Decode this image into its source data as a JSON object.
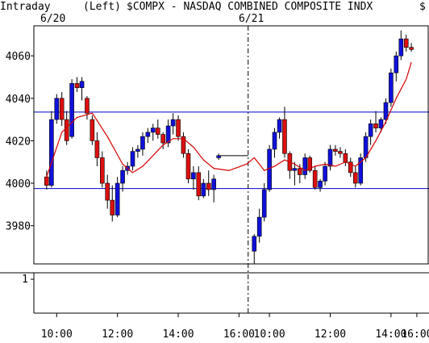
{
  "header": {
    "mode": "Intraday",
    "scale_side": "(Left)",
    "symbol_title": "$COMPX - NASDAQ COMBINED COMPOSITE INDX",
    "overflow_text": "$",
    "day1_label": "6/20",
    "day2_label": "6/21"
  },
  "chart_data": {
    "type": "candlestick",
    "title": "$COMPX - NASDAQ COMBINED COMPOSITE INDX",
    "sessions": [
      "6/20",
      "6/21"
    ],
    "ylim": [
      3962,
      4073
    ],
    "y_ticks": [
      3980,
      4000,
      4020,
      4040,
      4060
    ],
    "x_ticks": [
      "10:00",
      "12:00",
      "14:00",
      "16:00",
      "10:00",
      "12:00",
      "14:00",
      "16:00"
    ],
    "horizontal_lines": [
      4033.5,
      3997.5
    ],
    "lower_panel": {
      "y_tick": "1"
    },
    "series": [
      {
        "name": "price",
        "candles": [
          [
            9.67,
            4003,
            4006,
            3997,
            3999
          ],
          [
            9.83,
            3999,
            4034,
            3998,
            4030
          ],
          [
            10.0,
            4030,
            4042,
            4028,
            4040
          ],
          [
            10.17,
            4040,
            4043,
            4027,
            4030
          ],
          [
            10.33,
            4030,
            4034,
            4018,
            4020
          ],
          [
            10.5,
            4022,
            4049,
            4021,
            4047
          ],
          [
            10.67,
            4047,
            4050,
            4043,
            4045
          ],
          [
            10.83,
            4045,
            4050,
            4039,
            4048
          ],
          [
            11.0,
            4040,
            4041,
            4030,
            4033
          ],
          [
            11.17,
            4030,
            4032,
            4018,
            4020
          ],
          [
            11.33,
            4020,
            4024,
            4008,
            4012
          ],
          [
            11.5,
            4012,
            4015,
            3998,
            4000
          ],
          [
            11.67,
            4000,
            4004,
            3988,
            3992
          ],
          [
            11.83,
            3992,
            3999,
            3982,
            3985
          ],
          [
            12.0,
            3985,
            4003,
            3984,
            4000
          ],
          [
            12.17,
            4000,
            4008,
            3996,
            4006
          ],
          [
            12.33,
            4006,
            4010,
            4004,
            4008
          ],
          [
            12.5,
            4008,
            4017,
            4006,
            4015
          ],
          [
            12.67,
            4015,
            4018,
            4012,
            4016
          ],
          [
            12.83,
            4016,
            4024,
            4013,
            4022
          ],
          [
            13.0,
            4022,
            4026,
            4019,
            4024
          ],
          [
            13.17,
            4024,
            4028,
            4020,
            4026
          ],
          [
            13.33,
            4026,
            4030,
            4021,
            4023
          ],
          [
            13.5,
            4023,
            4024,
            4016,
            4019
          ],
          [
            13.67,
            4019,
            4030,
            4017,
            4027
          ],
          [
            13.83,
            4027,
            4033,
            4023,
            4030
          ],
          [
            14.0,
            4030,
            4032,
            4020,
            4022
          ],
          [
            14.17,
            4022,
            4024,
            4012,
            4014
          ],
          [
            14.33,
            4014,
            4016,
            4000,
            4002
          ],
          [
            14.5,
            4002,
            4008,
            3997,
            4005
          ],
          [
            14.67,
            4005,
            4008,
            3992,
            3994
          ],
          [
            14.83,
            3994,
            4002,
            3993,
            4000
          ],
          [
            15.0,
            4000,
            4006,
            3994,
            3997
          ],
          [
            15.17,
            3997,
            4004,
            3991,
            4002
          ],
          [
            15.33,
            4012,
            4014,
            4011,
            4013
          ],
          [
            16.5,
            3968,
            3976,
            3962,
            3975
          ],
          [
            16.67,
            3975,
            3988,
            3972,
            3984
          ],
          [
            16.83,
            3984,
            4000,
            3982,
            3997
          ],
          [
            17.0,
            3997,
            4018,
            3996,
            4016
          ],
          [
            17.17,
            4016,
            4026,
            4012,
            4024
          ],
          [
            17.33,
            4024,
            4031,
            4021,
            4030
          ],
          [
            17.5,
            4030,
            4036,
            4012,
            4014
          ],
          [
            17.67,
            4014,
            4015,
            4002,
            4006
          ],
          [
            17.83,
            4006,
            4010,
            3999,
            4007
          ],
          [
            18.0,
            4007,
            4009,
            4000,
            4004
          ],
          [
            18.17,
            4004,
            4014,
            4002,
            4012
          ],
          [
            18.33,
            4012,
            4013,
            4005,
            4006
          ],
          [
            18.5,
            4006,
            4008,
            3997,
            3998
          ],
          [
            18.67,
            3998,
            4002,
            3996,
            4001
          ],
          [
            18.83,
            4001,
            4010,
            3999,
            4008
          ],
          [
            19.0,
            4008,
            4018,
            4006,
            4016
          ],
          [
            19.17,
            4016,
            4018,
            4013,
            4015
          ],
          [
            19.33,
            4015,
            4017,
            4012,
            4014
          ],
          [
            19.5,
            4014,
            4016,
            4008,
            4010
          ],
          [
            19.67,
            4010,
            4012,
            4003,
            4005
          ],
          [
            19.83,
            4005,
            4008,
            3998,
            4000
          ],
          [
            20.0,
            4000,
            4014,
            3999,
            4012
          ],
          [
            20.17,
            4012,
            4024,
            4010,
            4022
          ],
          [
            20.33,
            4022,
            4030,
            4018,
            4028
          ],
          [
            20.5,
            4028,
            4034,
            4024,
            4026
          ],
          [
            20.67,
            4026,
            4031,
            4024,
            4030
          ],
          [
            20.83,
            4030,
            4040,
            4028,
            4038
          ],
          [
            21.0,
            4038,
            4054,
            4036,
            4052
          ],
          [
            21.17,
            4052,
            4062,
            4048,
            4060
          ],
          [
            21.33,
            4060,
            4072,
            4058,
            4068
          ],
          [
            21.5,
            4068,
            4070,
            4062,
            4064
          ],
          [
            21.67,
            4064,
            4066,
            4062,
            4063
          ]
        ]
      },
      {
        "name": "moving average",
        "color": "#d40000",
        "points": [
          [
            9.67,
            4003
          ],
          [
            10.17,
            4024
          ],
          [
            10.67,
            4031
          ],
          [
            11.17,
            4033
          ],
          [
            11.67,
            4022
          ],
          [
            12.17,
            4009
          ],
          [
            12.5,
            4005
          ],
          [
            12.83,
            4008
          ],
          [
            13.17,
            4013
          ],
          [
            13.5,
            4018
          ],
          [
            13.83,
            4021
          ],
          [
            14.17,
            4021
          ],
          [
            14.5,
            4017
          ],
          [
            14.83,
            4011
          ],
          [
            15.17,
            4007
          ],
          [
            15.67,
            4006
          ],
          [
            16.25,
            4009
          ],
          [
            16.5,
            4012
          ],
          [
            16.67,
            4009
          ],
          [
            16.83,
            4006
          ],
          [
            17.17,
            4008
          ],
          [
            17.5,
            4011
          ],
          [
            17.83,
            4009
          ],
          [
            18.17,
            4006
          ],
          [
            18.5,
            4008
          ],
          [
            18.83,
            4009
          ],
          [
            19.17,
            4008
          ],
          [
            19.5,
            4010
          ],
          [
            19.83,
            4008
          ],
          [
            20.17,
            4012
          ],
          [
            20.5,
            4020
          ],
          [
            20.83,
            4029
          ],
          [
            21.17,
            4040
          ],
          [
            21.5,
            4049
          ],
          [
            21.67,
            4057
          ]
        ]
      }
    ]
  }
}
